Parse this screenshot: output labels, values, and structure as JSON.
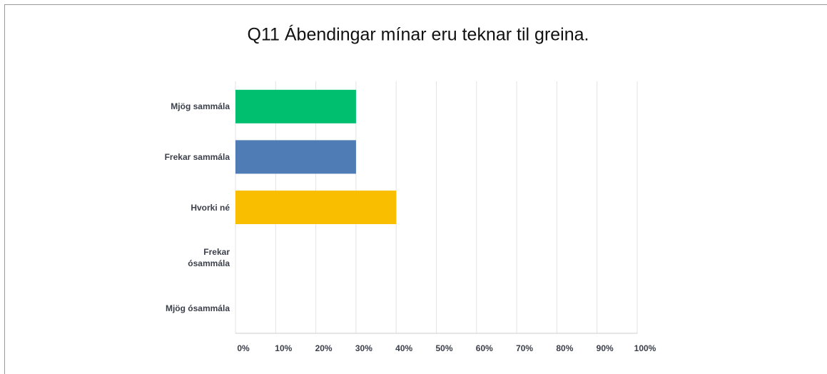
{
  "chart_data": {
    "type": "hbar",
    "title": "Q11 Ábendingar mínar eru teknar til greina.",
    "categories": [
      "Mjög sammála",
      "Frekar sammála",
      "Hvorki né",
      "Frekar ósammála",
      "Mjög ósammála"
    ],
    "values": [
      30,
      30,
      40,
      0,
      0
    ],
    "colors": [
      "#00bf6f",
      "#507cb6",
      "#f9be00",
      "#6bc8cd",
      "#ff8b4f"
    ],
    "xlim": [
      0,
      100
    ],
    "xticks": [
      {
        "value": 0,
        "label": "0%"
      },
      {
        "value": 10,
        "label": "10%"
      },
      {
        "value": 20,
        "label": "20%"
      },
      {
        "value": 30,
        "label": "30%"
      },
      {
        "value": 40,
        "label": "40%"
      },
      {
        "value": 50,
        "label": "50%"
      },
      {
        "value": 60,
        "label": "60%"
      },
      {
        "value": 70,
        "label": "70%"
      },
      {
        "value": 80,
        "label": "80%"
      },
      {
        "value": 90,
        "label": "90%"
      },
      {
        "value": 100,
        "label": "100%"
      }
    ],
    "grid": true
  }
}
